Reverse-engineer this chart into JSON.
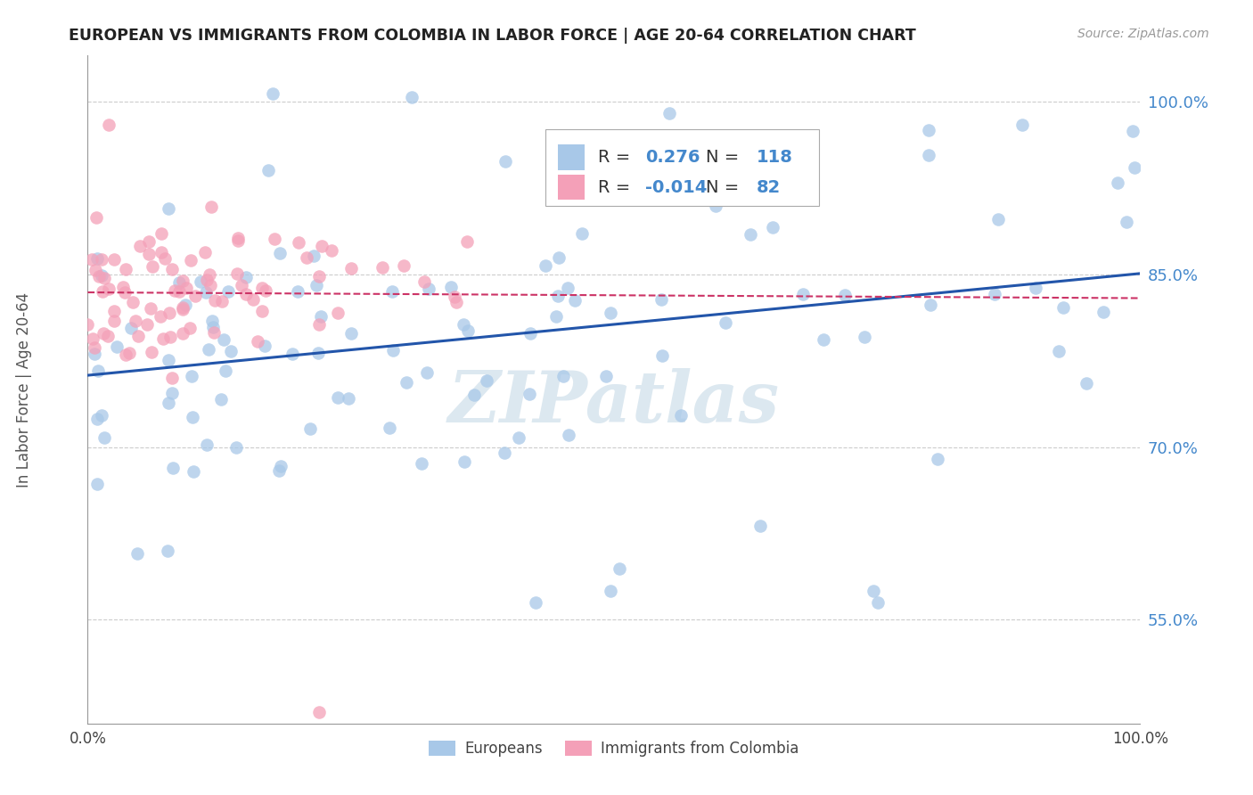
{
  "title": "EUROPEAN VS IMMIGRANTS FROM COLOMBIA IN LABOR FORCE | AGE 20-64 CORRELATION CHART",
  "source": "Source: ZipAtlas.com",
  "ylabel": "In Labor Force | Age 20-64",
  "xlim": [
    0.0,
    1.0
  ],
  "ylim": [
    0.46,
    1.04
  ],
  "R_blue": 0.276,
  "N_blue": 118,
  "R_pink": -0.014,
  "N_pink": 82,
  "blue_color": "#a8c8e8",
  "pink_color": "#f4a0b8",
  "blue_line_color": "#2255aa",
  "pink_line_color": "#cc3366",
  "watermark_color": "#dce8f0",
  "ytick_color": "#4488cc",
  "legend_label_blue": "Europeans",
  "legend_label_pink": "Immigrants from Colombia",
  "grid_color": "#cccccc",
  "yticks": [
    0.55,
    0.7,
    0.85,
    1.0
  ],
  "ytick_labels": [
    "55.0%",
    "70.0%",
    "85.0%",
    "100.0%"
  ]
}
